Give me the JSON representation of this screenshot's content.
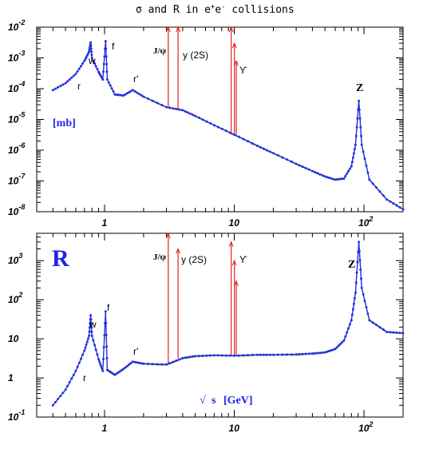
{
  "title_parts": {
    "a": "σ and R in e",
    "sup1": "+",
    "b": "e",
    "sup2": "-",
    "c": " collisions"
  },
  "x_ticks": [
    {
      "v": 1,
      "base": "1",
      "exp": ""
    },
    {
      "v": 10,
      "base": "10",
      "exp": ""
    },
    {
      "v": 100,
      "base": "10",
      "exp": "2"
    }
  ],
  "x_label": {
    "sqrt": "√",
    "s": "s",
    "unit": "[GeV]"
  },
  "sigma_panel": {
    "unit_label": "[mb]",
    "y_ticks": [
      {
        "v": -2,
        "base": "10",
        "exp": "-2"
      },
      {
        "v": -3,
        "base": "10",
        "exp": "-3"
      },
      {
        "v": -4,
        "base": "10",
        "exp": "-4"
      },
      {
        "v": -5,
        "base": "10",
        "exp": "-5"
      },
      {
        "v": -6,
        "base": "10",
        "exp": "-6"
      },
      {
        "v": -7,
        "base": "10",
        "exp": "-7"
      },
      {
        "v": -8,
        "base": "10",
        "exp": "-8"
      }
    ]
  },
  "r_panel": {
    "big_label": "R",
    "y_ticks": [
      {
        "v": 3,
        "base": "10",
        "exp": "3"
      },
      {
        "v": 2,
        "base": "10",
        "exp": "2"
      },
      {
        "v": 1,
        "base": "10",
        "exp": ""
      },
      {
        "v": 0,
        "base": "1",
        "exp": ""
      },
      {
        "v": -1,
        "base": "10",
        "exp": "-1"
      }
    ]
  },
  "resonance_labels": {
    "rho": "r",
    "omega": "w",
    "phi": "f",
    "rho_prime": "r'",
    "jpsi": "J/ψ",
    "psi2s": "y (2S)",
    "upsilon": "ϒ",
    "z": "Z"
  },
  "chart_data": [
    {
      "type": "line",
      "title": "",
      "xlabel": "√s [GeV]",
      "ylabel": "[mb]",
      "xscale": "log",
      "yscale": "log",
      "xlim": [
        0.3,
        200
      ],
      "ylim": [
        1e-08,
        0.01
      ],
      "grid": false,
      "series": [
        {
          "values": [
            {
              "x": 0.4,
              "y": 9e-05
            },
            {
              "x": 0.5,
              "y": 0.00015
            },
            {
              "x": 0.6,
              "y": 0.0003
            },
            {
              "x": 0.7,
              "y": 0.0008
            },
            {
              "x": 0.76,
              "y": 0.0016
            },
            {
              "x": 0.782,
              "y": 0.0032
            },
            {
              "x": 0.8,
              "y": 0.001
            },
            {
              "x": 0.9,
              "y": 0.00035
            },
            {
              "x": 0.97,
              "y": 0.0002
            },
            {
              "x": 1.019,
              "y": 0.0035
            },
            {
              "x": 1.05,
              "y": 0.0002
            },
            {
              "x": 1.2,
              "y": 6.5e-05
            },
            {
              "x": 1.4,
              "y": 6e-05
            },
            {
              "x": 1.65,
              "y": 9e-05
            },
            {
              "x": 2.0,
              "y": 5.5e-05
            },
            {
              "x": 3.0,
              "y": 2.5e-05
            },
            {
              "x": 4.0,
              "y": 2e-05
            },
            {
              "x": 5.0,
              "y": 1.3e-05
            },
            {
              "x": 7.0,
              "y": 6.5e-06
            },
            {
              "x": 10.0,
              "y": 3.2e-06
            },
            {
              "x": 15.0,
              "y": 1.4e-06
            },
            {
              "x": 20.0,
              "y": 8e-07
            },
            {
              "x": 30.0,
              "y": 3.6e-07
            },
            {
              "x": 40.0,
              "y": 2.1e-07
            },
            {
              "x": 50.0,
              "y": 1.4e-07
            },
            {
              "x": 60.0,
              "y": 1.1e-07
            },
            {
              "x": 70.0,
              "y": 1.2e-07
            },
            {
              "x": 80.0,
              "y": 3e-07
            },
            {
              "x": 86.0,
              "y": 1.5e-06
            },
            {
              "x": 91.2,
              "y": 4e-05
            },
            {
              "x": 96.0,
              "y": 1.5e-06
            },
            {
              "x": 110.0,
              "y": 1.1e-07
            },
            {
              "x": 150.0,
              "y": 2.5e-08
            },
            {
              "x": 200.0,
              "y": 1.2e-08
            }
          ]
        }
      ],
      "spikes": [
        {
          "x": 3.097,
          "y_top": 0.01
        },
        {
          "x": 3.686,
          "y_top": 0.01
        },
        {
          "x": 9.46,
          "y_top": 0.01
        },
        {
          "x": 10.02,
          "y_top": 0.003
        },
        {
          "x": 10.36,
          "y_top": 0.0008
        }
      ]
    },
    {
      "type": "line",
      "title": "",
      "xlabel": "√s [GeV]",
      "ylabel": "R",
      "xscale": "log",
      "yscale": "log",
      "xlim": [
        0.3,
        200
      ],
      "ylim": [
        0.1,
        5000
      ],
      "grid": false,
      "series": [
        {
          "values": [
            {
              "x": 0.4,
              "y": 0.2
            },
            {
              "x": 0.5,
              "y": 0.5
            },
            {
              "x": 0.6,
              "y": 1.5
            },
            {
              "x": 0.7,
              "y": 5
            },
            {
              "x": 0.76,
              "y": 12
            },
            {
              "x": 0.782,
              "y": 40
            },
            {
              "x": 0.8,
              "y": 12
            },
            {
              "x": 0.9,
              "y": 3
            },
            {
              "x": 0.97,
              "y": 1.5
            },
            {
              "x": 1.019,
              "y": 50
            },
            {
              "x": 1.05,
              "y": 1.6
            },
            {
              "x": 1.2,
              "y": 1.2
            },
            {
              "x": 1.4,
              "y": 1.7
            },
            {
              "x": 1.65,
              "y": 2.6
            },
            {
              "x": 2.0,
              "y": 2.3
            },
            {
              "x": 3.0,
              "y": 2.2
            },
            {
              "x": 4.0,
              "y": 3.2
            },
            {
              "x": 5.0,
              "y": 3.6
            },
            {
              "x": 7.0,
              "y": 3.8
            },
            {
              "x": 10.0,
              "y": 3.7
            },
            {
              "x": 15.0,
              "y": 3.9
            },
            {
              "x": 20.0,
              "y": 3.9
            },
            {
              "x": 30.0,
              "y": 4.0
            },
            {
              "x": 40.0,
              "y": 4.2
            },
            {
              "x": 50.0,
              "y": 4.5
            },
            {
              "x": 60.0,
              "y": 5.5
            },
            {
              "x": 70.0,
              "y": 9
            },
            {
              "x": 80.0,
              "y": 30
            },
            {
              "x": 86.0,
              "y": 150
            },
            {
              "x": 91.2,
              "y": 3000
            },
            {
              "x": 96.0,
              "y": 200
            },
            {
              "x": 110.0,
              "y": 30
            },
            {
              "x": 150.0,
              "y": 15
            },
            {
              "x": 200.0,
              "y": 14
            }
          ]
        }
      ],
      "spikes": [
        {
          "x": 3.097,
          "y_top": 5000
        },
        {
          "x": 3.686,
          "y_top": 2000
        },
        {
          "x": 9.46,
          "y_top": 3000
        },
        {
          "x": 10.02,
          "y_top": 1000
        },
        {
          "x": 10.36,
          "y_top": 300
        }
      ]
    }
  ],
  "colors": {
    "data": "#2233dd",
    "fit_red": "#dd2222",
    "fit_green": "#33aa33",
    "band": "#aaaacc",
    "text_blue": "#2222ee"
  }
}
